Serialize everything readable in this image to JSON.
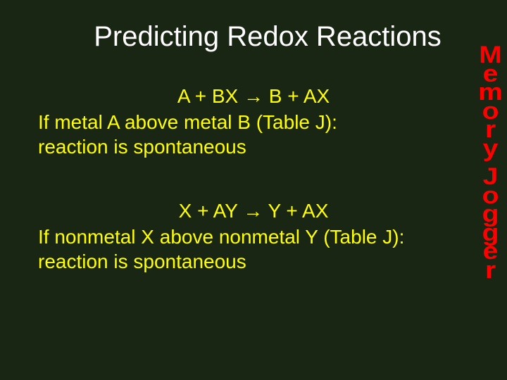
{
  "colors": {
    "background": "#1a2614",
    "title_text": "#ffffff",
    "body_text": "#ffff00",
    "sidebar_text": "#ff0000"
  },
  "typography": {
    "title_fontsize": 40,
    "body_fontsize": 28,
    "sidebar_fontsize": 34,
    "title_family": "Arial",
    "sidebar_family": "Impact"
  },
  "slide": {
    "title": "Predicting Redox Reactions",
    "equation1": "A  +  BX  →  B  +  AX",
    "rule1_line1": "If metal A above metal B (Table J):",
    "rule1_line2": " reaction is spontaneous",
    "equation2": "X  +   AY  →  Y  +  AX",
    "rule2_line1": "If nonmetal X above nonmetal Y (Table J):",
    "rule2_line2": " reaction is spontaneous"
  },
  "sidebar": {
    "letters": [
      "M",
      "e",
      "m",
      "o",
      "r",
      "y",
      "",
      "J",
      "o",
      "g",
      "g",
      "e",
      "r"
    ]
  }
}
